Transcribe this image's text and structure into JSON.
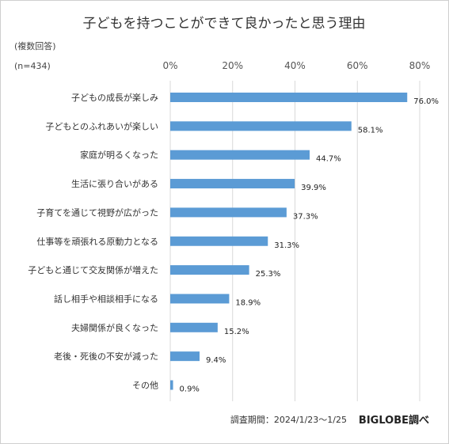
{
  "chart_data": {
    "type": "bar",
    "orientation": "horizontal",
    "title": "子どもを持つことができて良かったと思う理由",
    "subtitle": "(複数回答)",
    "sample_size": "(n=434)",
    "categories": [
      "子どもの成長が楽しみ",
      "子どもとのふれあいが楽しい",
      "家庭が明るくなった",
      "生活に張り合いがある",
      "子育てを通じて視野が広がった",
      "仕事等を頑張れる原動力となる",
      "子どもと通じて交友関係が増えた",
      "話し相手や相談相手になる",
      "夫婦関係が良くなった",
      "老後・死後の不安が減った",
      "その他"
    ],
    "values": [
      76.0,
      58.1,
      44.7,
      39.9,
      37.3,
      31.3,
      25.3,
      18.9,
      15.2,
      9.4,
      0.9
    ],
    "value_labels": [
      "76.0%",
      "58.1%",
      "44.7%",
      "39.9%",
      "37.3%",
      "31.3%",
      "25.3%",
      "18.9%",
      "15.2%",
      "9.4%",
      "0.9%"
    ],
    "x_ticks": [
      0,
      20,
      40,
      60,
      80
    ],
    "x_tick_labels": [
      "0%",
      "20%",
      "40%",
      "60%",
      "80%"
    ],
    "xlim": [
      0,
      80
    ],
    "grid": true,
    "bar_color": "#5b9bd5",
    "grid_color": "#d9d9d9",
    "footer": "調査期間：2024/1/23〜1/25",
    "brand": "BIGLOBE調べ"
  }
}
